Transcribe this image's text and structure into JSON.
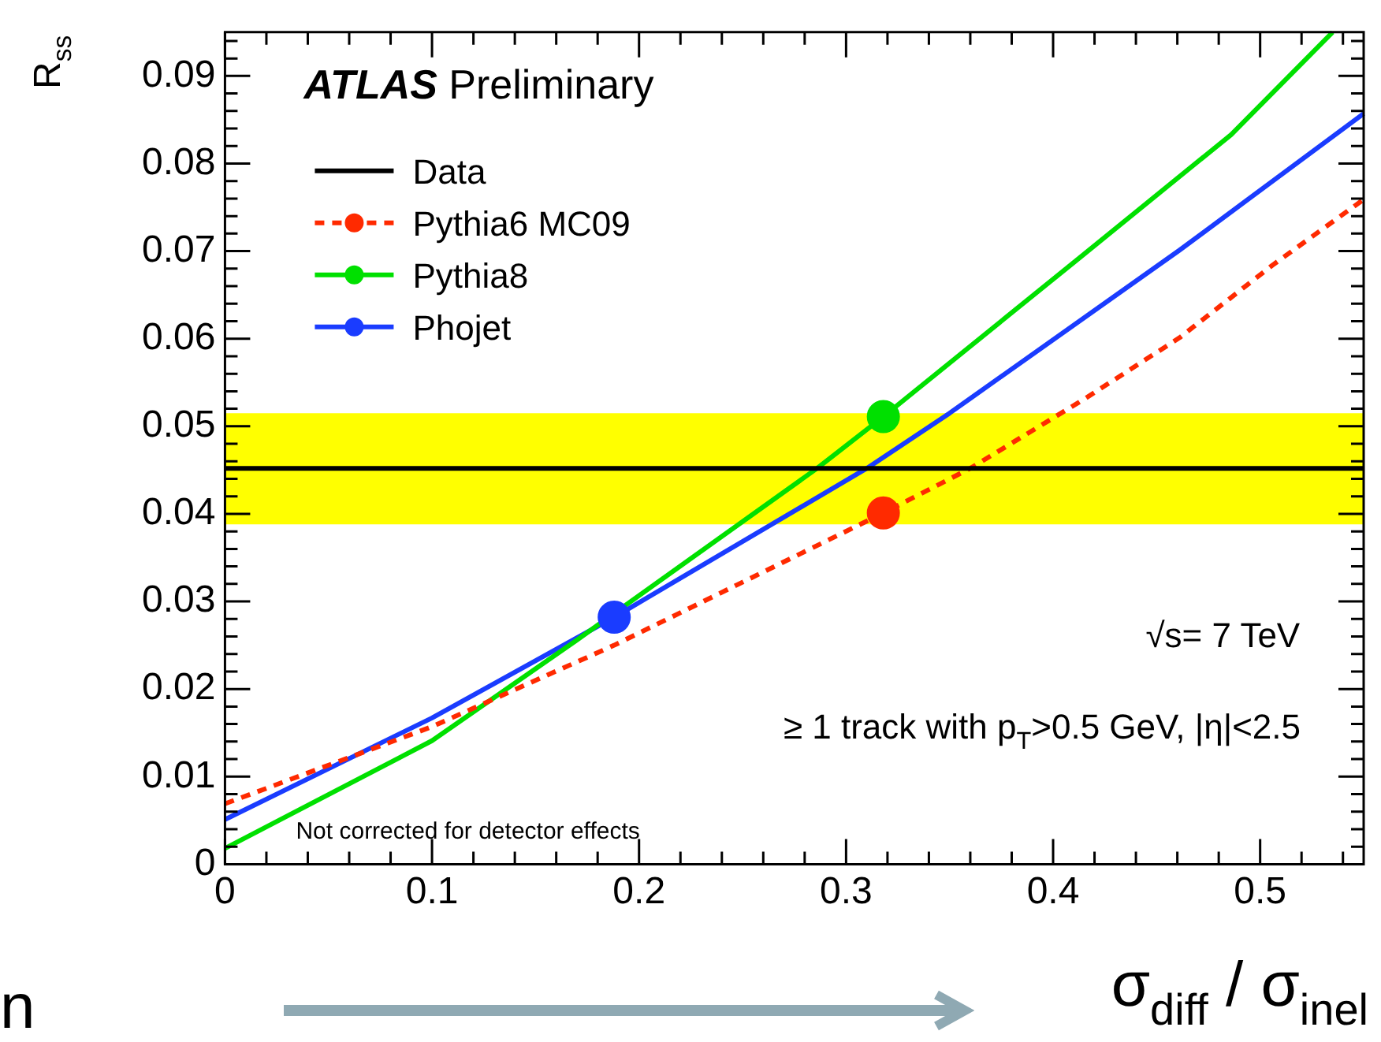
{
  "chart_data": {
    "type": "line",
    "title": "ATLAS Preliminary",
    "xlabel": "σ$_{diff}$ / σ$_{inel}$",
    "ylabel": "R$_{ss}$",
    "xlim": [
      0,
      0.55
    ],
    "xticks": [
      0,
      0.1,
      0.2,
      0.3,
      0.4,
      0.5
    ],
    "ylim": [
      0,
      0.095
    ],
    "yticks": [
      0,
      0.01,
      0.02,
      0.03,
      0.04,
      0.05,
      0.06,
      0.07,
      0.08,
      0.09
    ],
    "grid": false,
    "legend": "top left",
    "bands": [
      {
        "axis": "y",
        "from": 0.0388,
        "to": 0.0515,
        "color": "#ffff00"
      }
    ],
    "series": [
      {
        "name": "Data",
        "color": "#000000",
        "x": [
          0,
          0.55
        ],
        "values": [
          0.0452,
          0.0452
        ]
      },
      {
        "name": "Pythia6 MC09",
        "color": "#ff2a00",
        "line_style": "dashed",
        "x": [
          0,
          0.1,
          0.188,
          0.318,
          0.36,
          0.415,
          0.461,
          0.506,
          0.55
        ],
        "values": [
          0.0069,
          0.0157,
          0.025,
          0.0401,
          0.0452,
          0.0531,
          0.0601,
          0.0684,
          0.0759
        ]
      },
      {
        "name": "Pythia8",
        "color": "#00e000",
        "x": [
          0,
          0.1,
          0.17,
          0.286,
          0.318,
          0.411,
          0.486,
          0.535
        ],
        "values": [
          0.0018,
          0.0141,
          0.0256,
          0.0452,
          0.0511,
          0.0689,
          0.0833,
          0.095
        ]
      },
      {
        "name": "Phojet",
        "color": "#1a3cff",
        "x": [
          0,
          0.1,
          0.188,
          0.31,
          0.35,
          0.461,
          0.55
        ],
        "values": [
          0.0051,
          0.0167,
          0.0282,
          0.0452,
          0.0515,
          0.0701,
          0.0857
        ]
      },
      {
        "type": "scatter",
        "marker": "circle",
        "color": "#ff2a00",
        "x": [
          0.318
        ],
        "values": [
          0.0401
        ]
      },
      {
        "type": "scatter",
        "marker": "circle",
        "color": "#00e000",
        "x": [
          0.318
        ],
        "values": [
          0.0511
        ]
      },
      {
        "type": "scatter",
        "marker": "circle",
        "color": "#1a3cff",
        "x": [
          0.188
        ],
        "values": [
          0.0282
        ]
      }
    ],
    "annotations": [
      "√s= 7 TeV",
      "≥ 1 track with p$_{T}$>0.5 GeV, |η|<2.5",
      "Not corrected for detector effects",
      "n"
    ]
  }
}
